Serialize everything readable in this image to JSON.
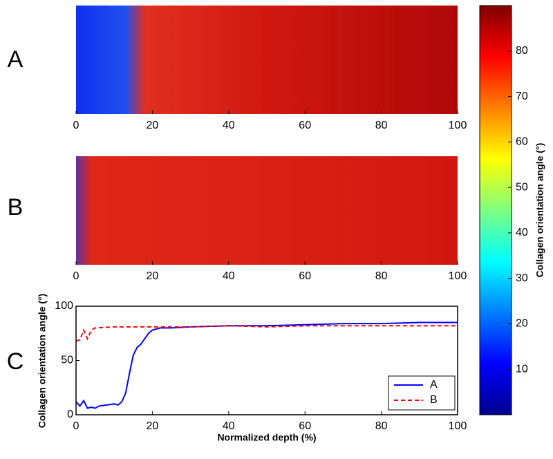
{
  "chart_data": [
    {
      "type": "heatmap",
      "label": "A",
      "xlim": [
        0,
        100
      ],
      "xticks": [
        0,
        20,
        40,
        60,
        80,
        100
      ]
    },
    {
      "type": "heatmap",
      "label": "B",
      "xlim": [
        0,
        100
      ],
      "xticks": [
        0,
        20,
        40,
        60,
        80,
        100
      ]
    },
    {
      "type": "colorbar",
      "ylabel": "Collagen orientation angle (°)",
      "ylim": [
        0,
        90
      ],
      "yticks": [
        10,
        20,
        30,
        40,
        50,
        60,
        70,
        80
      ]
    },
    {
      "type": "line",
      "label": "C",
      "xlabel": "Normalized depth (%)",
      "ylabel": "Collagen orientation angle (°)",
      "xlim": [
        0,
        100
      ],
      "ylim": [
        0,
        100
      ],
      "xticks": [
        0,
        20,
        40,
        60,
        80,
        100
      ],
      "yticks": [
        0,
        50,
        100
      ],
      "legend": "lower right",
      "series": [
        {
          "name": "A",
          "color": "#0000ff",
          "dash": false,
          "x": [
            0,
            1,
            2,
            3,
            4,
            5,
            6,
            8,
            10,
            11,
            12,
            13,
            14,
            15,
            16,
            17,
            18,
            19,
            20,
            22,
            25,
            30,
            40,
            50,
            60,
            70,
            80,
            90,
            100
          ],
          "values": [
            12,
            8,
            13,
            6,
            7,
            6,
            8,
            9,
            10,
            9,
            12,
            20,
            38,
            55,
            62,
            65,
            70,
            75,
            78,
            80,
            80,
            81,
            82,
            82,
            83,
            84,
            84,
            85,
            85
          ]
        },
        {
          "name": "B",
          "color": "#ff0000",
          "dash": true,
          "x": [
            0,
            1,
            2,
            3,
            4,
            5,
            10,
            20,
            30,
            40,
            50,
            60,
            70,
            80,
            90,
            100
          ],
          "values": [
            68,
            69,
            78,
            70,
            78,
            80,
            81,
            81,
            81,
            82,
            81,
            82,
            82,
            82,
            82,
            82
          ]
        }
      ]
    }
  ]
}
